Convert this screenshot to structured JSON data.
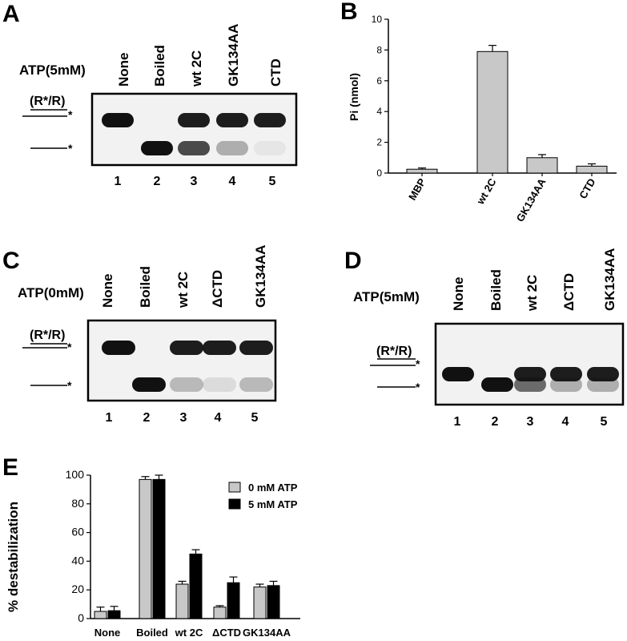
{
  "panels": {
    "A": {
      "letter": "A",
      "atp_label": "ATP(5mM)",
      "lane_labels": [
        "None",
        "Boiled",
        "wt 2C",
        "GK134AA",
        "CTD"
      ],
      "lane_numbers": [
        "1",
        "2",
        "3",
        "4",
        "5"
      ],
      "duplex_label": "(R*/R)",
      "star": "*",
      "band_intensity": {
        "duplex": [
          1.0,
          0.0,
          0.95,
          0.95,
          0.95
        ],
        "single": [
          0.0,
          1.0,
          0.75,
          0.3,
          0.05
        ]
      }
    },
    "B": {
      "letter": "B",
      "ylabel": "Pi (nmol)",
      "yticks": [
        "0",
        "2",
        "4",
        "6",
        "8",
        "10"
      ],
      "categories": [
        "MBP",
        "wt 2C",
        "GK134AA",
        "CTD"
      ]
    },
    "C": {
      "letter": "C",
      "atp_label": "ATP(0mM)",
      "lane_labels": [
        "None",
        "Boiled",
        "wt 2C",
        "ΔCTD",
        "GK134AA"
      ],
      "lane_numbers": [
        "1",
        "2",
        "3",
        "4",
        "5"
      ],
      "duplex_label": "(R*/R)",
      "star": "*",
      "band_intensity": {
        "duplex": [
          1.0,
          0.0,
          0.95,
          0.95,
          0.95
        ],
        "single": [
          0.0,
          1.0,
          0.25,
          0.1,
          0.25
        ]
      }
    },
    "D": {
      "letter": "D",
      "atp_label": "ATP(5mM)",
      "lane_labels": [
        "None",
        "Boiled",
        "wt 2C",
        "ΔCTD",
        "GK134AA"
      ],
      "lane_numbers": [
        "1",
        "2",
        "3",
        "4",
        "5"
      ],
      "duplex_label": "(R*/R)",
      "star": "*",
      "band_intensity": {
        "duplex": [
          1.0,
          0.0,
          0.95,
          0.95,
          0.95
        ],
        "single": [
          0.0,
          1.0,
          0.6,
          0.3,
          0.3
        ]
      }
    },
    "E": {
      "letter": "E",
      "ylabel": "% destabilization",
      "yticks": [
        "0",
        "20",
        "40",
        "60",
        "80",
        "100"
      ],
      "categories": [
        "None",
        "Boiled",
        "wt 2C",
        "ΔCTD",
        "GK134AA"
      ],
      "legend": [
        "0 mM ATP",
        "5 mM ATP"
      ]
    }
  },
  "colors": {
    "gray_bar": "#c8c8c8",
    "black_bar": "#000000",
    "gel_bg": "#f2f2f2",
    "band": "#111111"
  },
  "chart_data": [
    {
      "type": "bar",
      "title": "",
      "xlabel": "",
      "ylabel": "Pi (nmol)",
      "ylim": [
        0,
        10
      ],
      "categories": [
        "MBP",
        "wt 2C",
        "GK134AA",
        "CTD"
      ],
      "values": [
        0.25,
        7.9,
        1.0,
        0.45
      ],
      "errors": [
        0.08,
        0.4,
        0.2,
        0.15
      ],
      "grid": false,
      "legend": "none"
    },
    {
      "type": "bar",
      "title": "",
      "xlabel": "",
      "ylabel": "% destabilization",
      "ylim": [
        0,
        100
      ],
      "categories": [
        "None",
        "Boiled",
        "wt 2C",
        "ΔCTD",
        "GK134AA"
      ],
      "series": [
        {
          "name": "0 mM ATP",
          "values": [
            5,
            97,
            24,
            8,
            22
          ],
          "errors": [
            3,
            2,
            2,
            1,
            2
          ]
        },
        {
          "name": "5 mM ATP",
          "values": [
            5.5,
            97,
            45,
            25,
            23
          ],
          "errors": [
            3,
            3,
            3,
            4,
            3
          ]
        }
      ],
      "grid": false,
      "legend": "top-right"
    }
  ]
}
